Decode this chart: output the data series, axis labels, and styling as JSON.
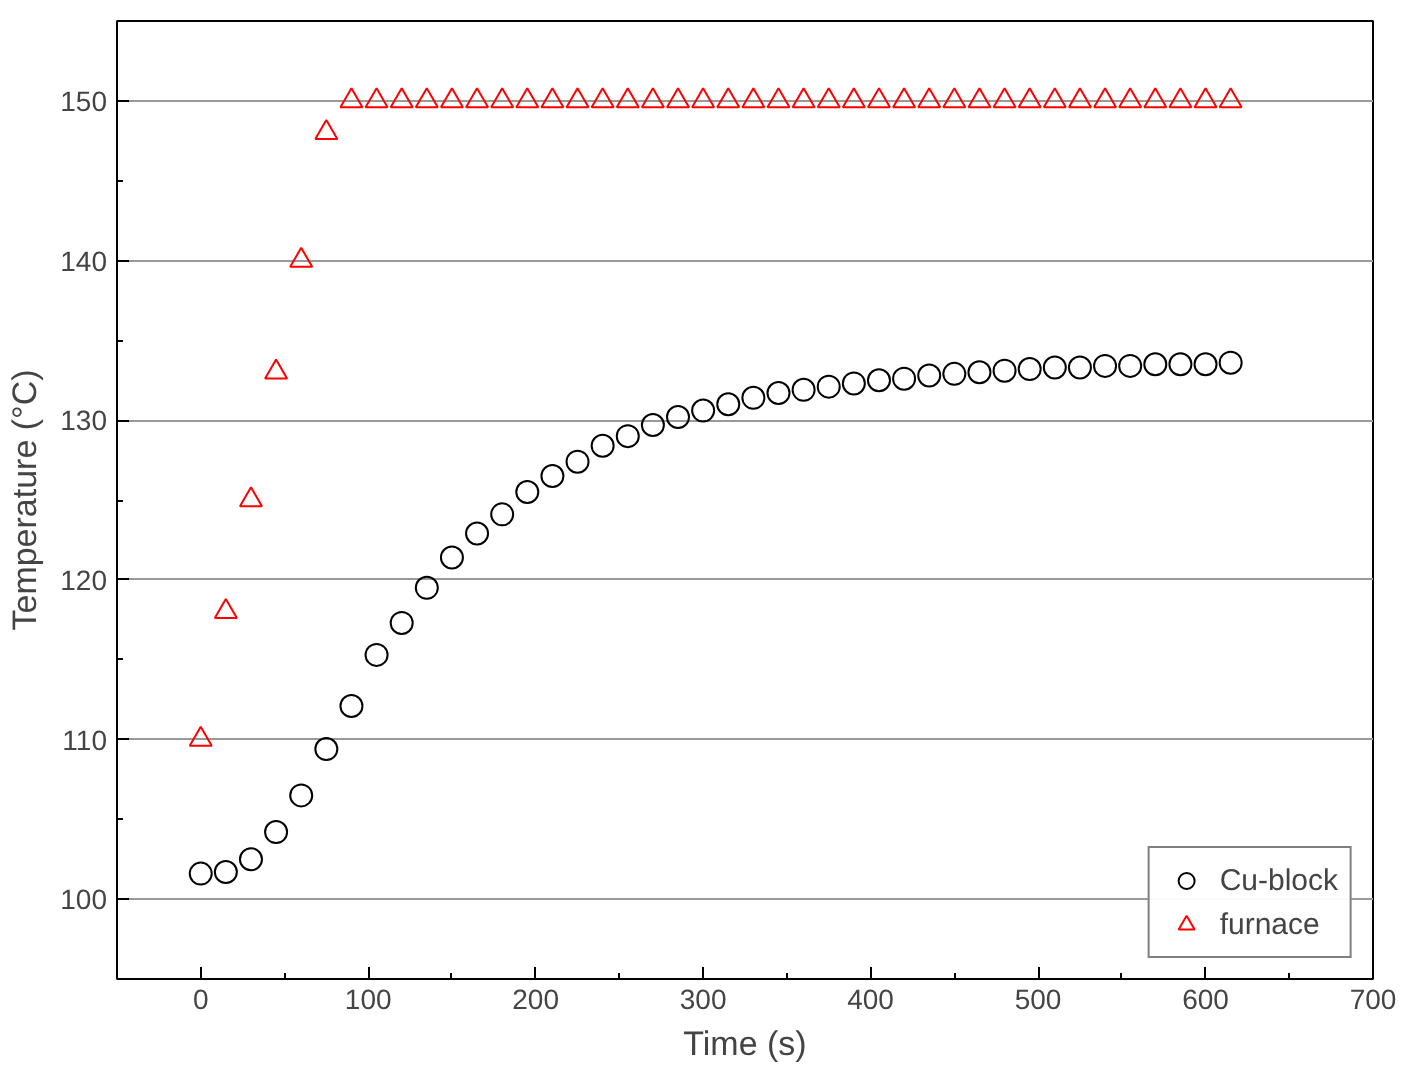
{
  "chart_data": {
    "type": "scatter",
    "xlabel": "Time (s)",
    "ylabel": "Temperature (°C)",
    "xlim": [
      -50,
      700
    ],
    "ylim": [
      95,
      155
    ],
    "xticks": [
      0,
      100,
      200,
      300,
      400,
      500,
      600,
      700
    ],
    "yticks": [
      100,
      110,
      120,
      130,
      140,
      150
    ],
    "grid": "y",
    "legend": "bottom right",
    "series": [
      {
        "name": "Cu-block",
        "color": "#000000",
        "marker": "circle",
        "x": [
          0,
          15,
          30,
          45,
          60,
          75,
          90,
          105,
          120,
          135,
          150,
          165,
          180,
          195,
          210,
          225,
          240,
          255,
          270,
          285,
          300,
          315,
          330,
          345,
          360,
          375,
          390,
          405,
          420,
          435,
          450,
          465,
          480,
          495,
          510,
          525,
          540,
          555,
          570,
          585,
          600,
          615
        ],
        "values": [
          101.6,
          101.7,
          102.5,
          104.2,
          106.5,
          109.4,
          112.1,
          115.3,
          117.3,
          119.5,
          121.4,
          122.9,
          124.1,
          125.5,
          126.5,
          127.4,
          128.4,
          129.0,
          129.7,
          130.2,
          130.6,
          131.0,
          131.4,
          131.7,
          131.9,
          132.1,
          132.3,
          132.5,
          132.6,
          132.8,
          132.9,
          133.0,
          133.1,
          133.2,
          133.3,
          133.3,
          133.4,
          133.4,
          133.5,
          133.5,
          133.5,
          133.6
        ]
      },
      {
        "name": "furnace",
        "color": "#ff0000",
        "marker": "triangle",
        "x": [
          0,
          15,
          30,
          45,
          60,
          75,
          90,
          105,
          120,
          135,
          150,
          165,
          180,
          195,
          210,
          225,
          240,
          255,
          270,
          285,
          300,
          315,
          330,
          345,
          360,
          375,
          390,
          405,
          420,
          435,
          450,
          465,
          480,
          495,
          510,
          525,
          540,
          555,
          570,
          585,
          600,
          615
        ],
        "values": [
          110,
          118,
          125,
          133,
          140,
          148,
          150,
          150,
          150,
          150,
          150,
          150,
          150,
          150,
          150,
          150,
          150,
          150,
          150,
          150,
          150,
          150,
          150,
          150,
          150,
          150,
          150,
          150,
          150,
          150,
          150,
          150,
          150,
          150,
          150,
          150,
          150,
          150,
          150,
          150,
          150,
          150
        ]
      }
    ]
  }
}
